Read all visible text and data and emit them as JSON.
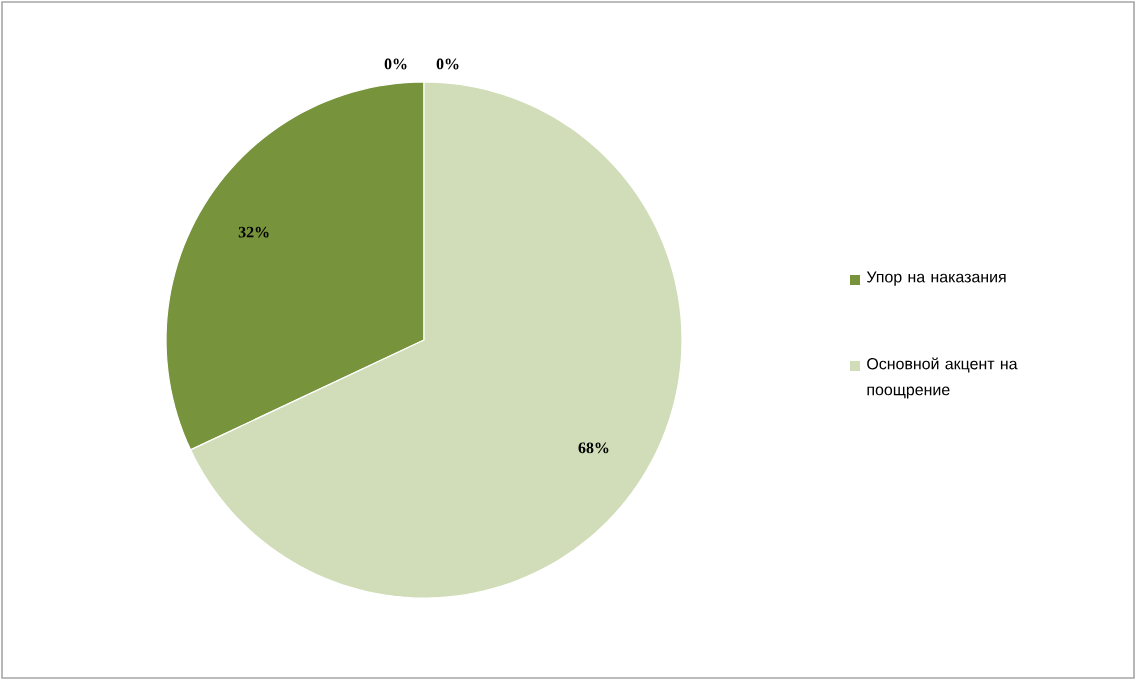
{
  "chart_data": {
    "type": "pie",
    "categories": [
      "Упор на наказания",
      "Основной акцент на поощрение",
      null,
      null
    ],
    "values": [
      32,
      68,
      0,
      0
    ],
    "value_labels": [
      "32%",
      "68%",
      "0%",
      "0%"
    ],
    "colors": [
      "#77933c",
      "#d0ddb8",
      "#4f6228",
      "#9bbb59"
    ],
    "legend": "right"
  }
}
